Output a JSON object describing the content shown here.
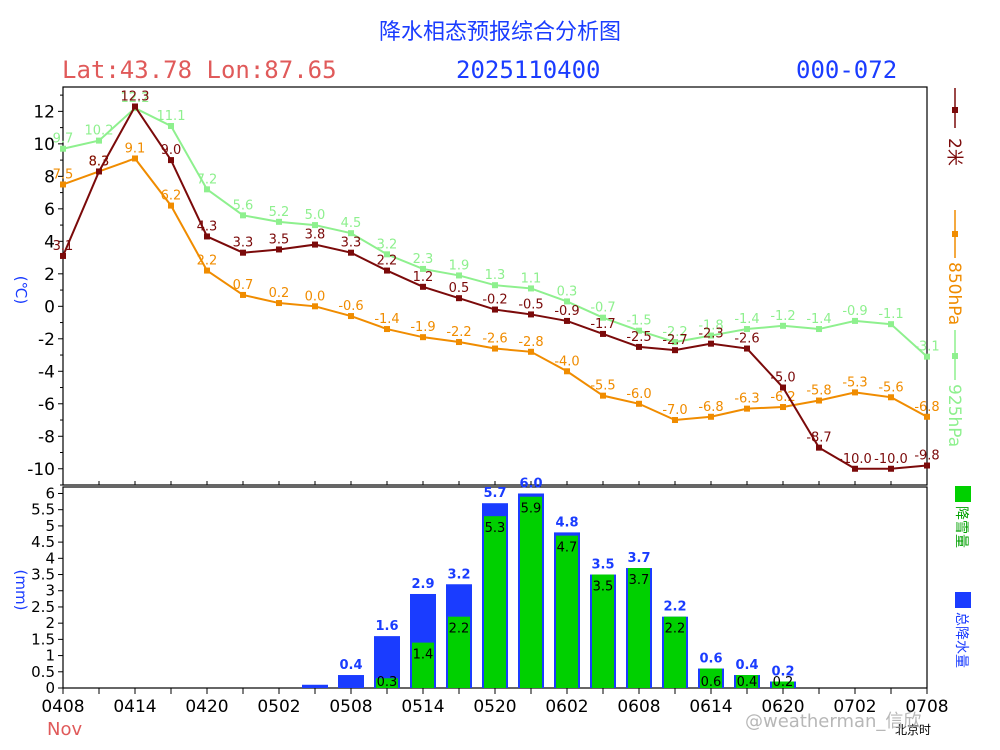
{
  "header": {
    "title": "降水相态预报综合分析图",
    "location": "Lat:43.78  Lon:87.65",
    "run_time": "2025110400",
    "forecast_range": "000-072"
  },
  "watermark": "@weatherman_信欣",
  "chart_data": [
    {
      "type": "line",
      "title": "",
      "ylabel": "(℃)",
      "ylim": [
        -11,
        13.5
      ],
      "yticks": [
        -10,
        -8,
        -6,
        -4,
        -2,
        0,
        2,
        4,
        6,
        8,
        10,
        12
      ],
      "series": [
        {
          "name": "2米",
          "color": "#7b0a0a",
          "values": [
            3.1,
            8.3,
            12.3,
            9.0,
            4.3,
            3.3,
            3.5,
            3.8,
            3.3,
            2.2,
            1.2,
            0.5,
            -0.2,
            -0.5,
            -0.9,
            -1.7,
            -2.5,
            -2.7,
            -2.3,
            -2.6,
            -5.0,
            -8.7,
            -10.0,
            -10.0,
            -9.8
          ]
        },
        {
          "name": "850hPa",
          "color": "#f08c00",
          "values": [
            7.5,
            8.3,
            9.1,
            6.2,
            2.2,
            0.7,
            0.2,
            0.0,
            -0.6,
            -1.4,
            -1.9,
            -2.2,
            -2.6,
            -2.8,
            -4.0,
            -5.5,
            -6.0,
            -7.0,
            -6.8,
            -6.3,
            -6.2,
            -5.8,
            -5.3,
            -5.6,
            -6.8
          ]
        },
        {
          "name": "925hPa",
          "color": "#8ef08e",
          "values": [
            9.7,
            10.2,
            12.2,
            11.1,
            7.2,
            5.6,
            5.2,
            5.0,
            4.5,
            3.2,
            2.3,
            1.9,
            1.3,
            1.1,
            0.3,
            -0.7,
            -1.5,
            -2.2,
            -1.8,
            -1.4,
            -1.2,
            -1.4,
            -0.9,
            -1.1,
            -3.1
          ]
        }
      ]
    },
    {
      "type": "bar",
      "title": "",
      "ylabel": "(mm)",
      "xlabel": "北京时",
      "ylim": [
        0,
        6.2
      ],
      "yticks": [
        "0",
        "0.5",
        "1",
        "1.5",
        "2",
        "2.5",
        "3",
        "3.5",
        "4",
        "4.5",
        "5",
        "5.5",
        "6"
      ],
      "x_tick_labels": [
        "0408",
        "0414",
        "0420",
        "0502",
        "0508",
        "0514",
        "0520",
        "0602",
        "0608",
        "0614",
        "0620",
        "0702",
        "0708"
      ],
      "x_month_label": "Nov",
      "series": [
        {
          "name": "总降水量",
          "color": "#1a3cff",
          "values": [
            0,
            0,
            0,
            0,
            0,
            0,
            0,
            0.1,
            0.4,
            1.6,
            2.9,
            3.2,
            5.7,
            6.0,
            4.8,
            3.5,
            3.7,
            2.2,
            0.6,
            0.4,
            0.2,
            0,
            0,
            0,
            0
          ],
          "labels": [
            "",
            "",
            "",
            "",
            "",
            "",
            "",
            "",
            "0.4",
            "1.6",
            "2.9",
            "3.2",
            "5.7",
            "6.0",
            "4.8",
            "3.5",
            "3.7",
            "2.2",
            "0.6",
            "0.4",
            "0.2",
            "",
            "",
            "",
            ""
          ]
        },
        {
          "name": "降雪量",
          "color": "#00d000",
          "values": [
            0,
            0,
            0,
            0,
            0,
            0,
            0,
            0,
            0,
            0.3,
            1.4,
            2.2,
            5.3,
            5.9,
            4.7,
            3.5,
            3.7,
            2.2,
            0.6,
            0.4,
            0.2,
            0,
            0,
            0,
            0
          ],
          "labels": [
            "",
            "",
            "",
            "",
            "",
            "",
            "",
            "",
            "",
            "0.3",
            "1.4",
            "2.2",
            "5.3",
            "5.9",
            "4.7",
            "3.5",
            "3.7",
            "2.2",
            "0.6",
            "0.4",
            "0.2",
            "",
            "",
            "",
            ""
          ]
        }
      ]
    }
  ]
}
